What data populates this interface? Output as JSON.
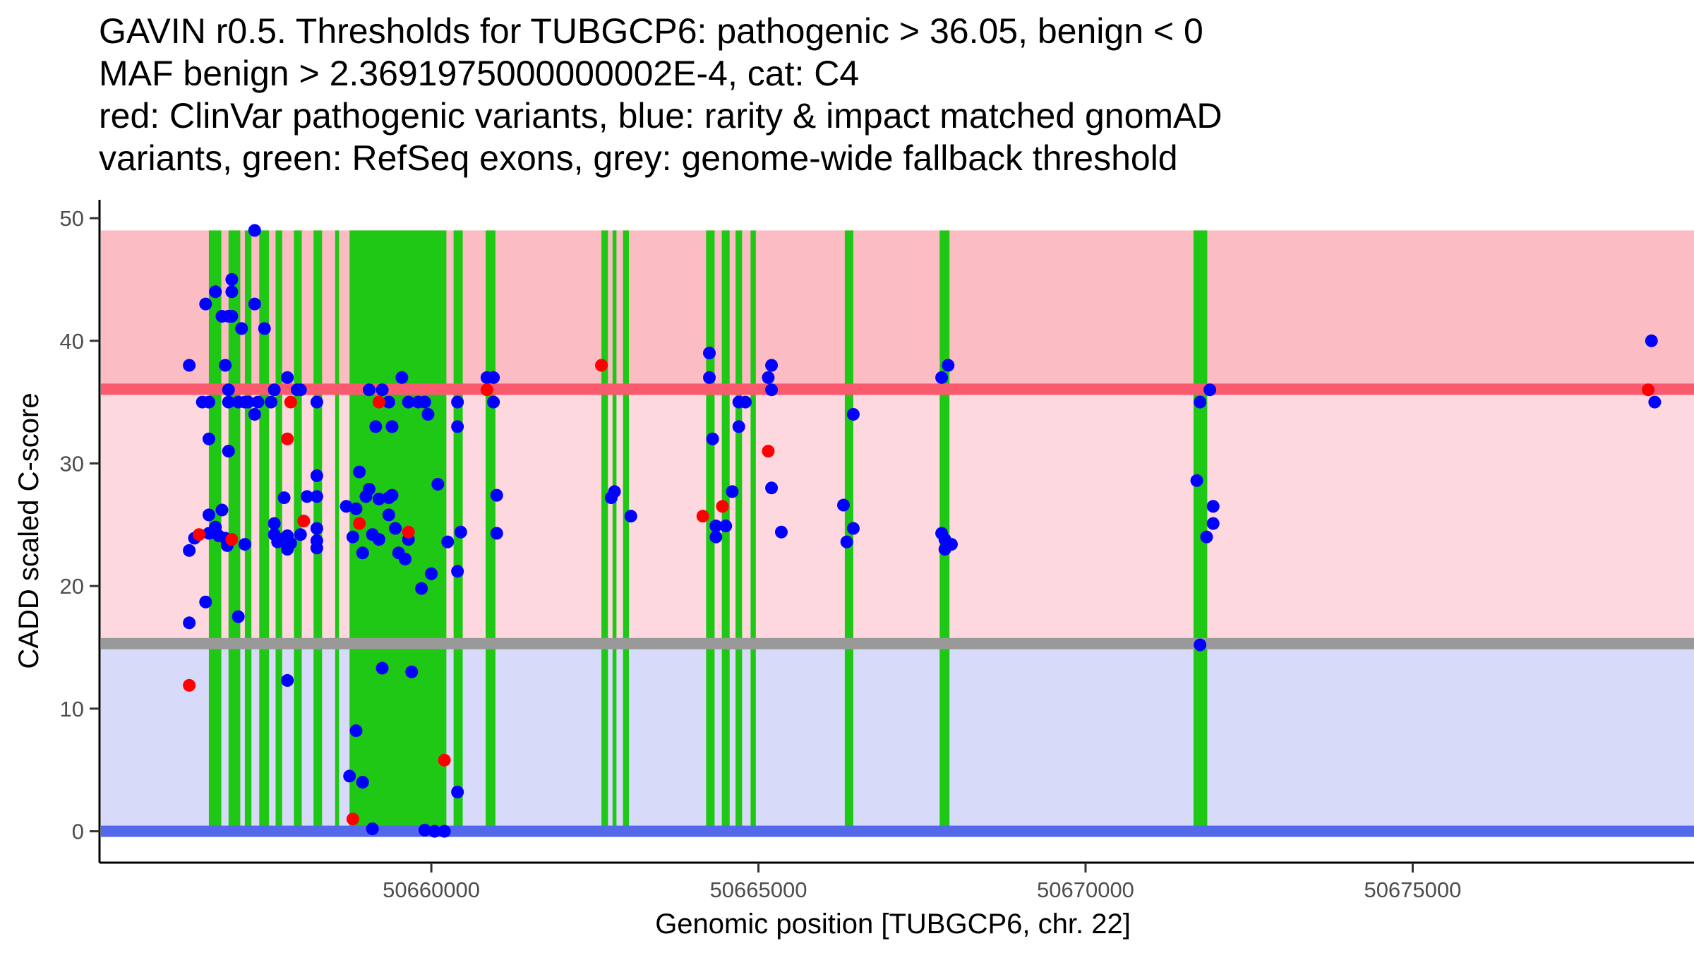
{
  "chart_data": {
    "type": "scatter",
    "title_lines": [
      "GAVIN r0.5. Thresholds for TUBGCP6: pathogenic > 36.05, benign < 0",
      "MAF benign > 2.3691975000000002E-4, cat: C4",
      "red: ClinVar pathogenic variants, blue: rarity & impact matched gnomAD",
      "variants, green: RefSeq exons, grey: genome-wide fallback threshold"
    ],
    "xlabel": "Genomic position [TUBGCP6, chr. 22]",
    "ylabel": "CADD scaled C-score",
    "xlim": [
      50654950,
      50679300
    ],
    "ylim": [
      -2.5,
      51.5
    ],
    "x_ticks": [
      50660000,
      50665000,
      50670000,
      50675000
    ],
    "x_tick_labels": [
      "50660000",
      "50665000",
      "50670000",
      "50675000"
    ],
    "y_ticks": [
      0,
      10,
      20,
      30,
      40,
      50
    ],
    "y_tick_labels": [
      "0",
      "10",
      "20",
      "30",
      "40",
      "50"
    ],
    "bands": [
      {
        "name": "pathogenic-zone",
        "from": 36.05,
        "to": 49,
        "color": "#fbbcc4"
      },
      {
        "name": "uncertain-zone",
        "from": 15.3,
        "to": 36.05,
        "color": "#fdd9df"
      },
      {
        "name": "benign-zone",
        "from": 0,
        "to": 15.3,
        "color": "#d8daf9"
      }
    ],
    "threshold_lines": [
      {
        "name": "pathogenic-threshold",
        "y": 36.05,
        "color": "#fa5a6e"
      },
      {
        "name": "fallback-threshold",
        "y": 15.3,
        "color": "#999999"
      },
      {
        "name": "benign-threshold",
        "y": 0,
        "color": "#5468ec"
      }
    ],
    "exon_color": "#1ec814",
    "exons": [
      [
        50656600,
        50656790
      ],
      [
        50656900,
        50657080
      ],
      [
        50657150,
        50657250
      ],
      [
        50657370,
        50657520
      ],
      [
        50657620,
        50657720
      ],
      [
        50657900,
        50658020
      ],
      [
        50658200,
        50658330
      ],
      [
        50658530,
        50658590
      ],
      [
        50658750,
        50660230
      ],
      [
        50660340,
        50660480
      ],
      [
        50660830,
        50660980
      ],
      [
        50662600,
        50662700
      ],
      [
        50662770,
        50662830
      ],
      [
        50662930,
        50663020
      ],
      [
        50664200,
        50664330
      ],
      [
        50664440,
        50664560
      ],
      [
        50664650,
        50664750
      ],
      [
        50664880,
        50664960
      ],
      [
        50666320,
        50666450
      ],
      [
        50667770,
        50667920
      ],
      [
        50671650,
        50671860
      ]
    ],
    "series": [
      {
        "name": "gnomAD variants",
        "color": "#0000ff",
        "points": [
          [
            50656300,
            38
          ],
          [
            50656300,
            22.9
          ],
          [
            50656300,
            17
          ],
          [
            50656380,
            23.9
          ],
          [
            50656500,
            35
          ],
          [
            50656550,
            43
          ],
          [
            50656550,
            18.7
          ],
          [
            50656600,
            35
          ],
          [
            50656600,
            32
          ],
          [
            50656600,
            25.8
          ],
          [
            50656600,
            24.3
          ],
          [
            50656700,
            44
          ],
          [
            50656700,
            24.8
          ],
          [
            50656750,
            24.1
          ],
          [
            50656800,
            26.2
          ],
          [
            50656800,
            42
          ],
          [
            50656850,
            38
          ],
          [
            50656850,
            23.9
          ],
          [
            50656880,
            23.3
          ],
          [
            50656900,
            42
          ],
          [
            50656900,
            36
          ],
          [
            50656900,
            35
          ],
          [
            50656900,
            31
          ],
          [
            50656950,
            45
          ],
          [
            50656950,
            44
          ],
          [
            50656950,
            42
          ],
          [
            50657050,
            35
          ],
          [
            50657050,
            17.5
          ],
          [
            50657100,
            41
          ],
          [
            50657150,
            35
          ],
          [
            50657150,
            23.4
          ],
          [
            50657200,
            35
          ],
          [
            50657300,
            49
          ],
          [
            50657300,
            43
          ],
          [
            50657300,
            34
          ],
          [
            50657350,
            35
          ],
          [
            50657450,
            41
          ],
          [
            50657550,
            35
          ],
          [
            50657600,
            36
          ],
          [
            50657600,
            25.1
          ],
          [
            50657600,
            24.2
          ],
          [
            50657650,
            23.6
          ],
          [
            50657700,
            23.8
          ],
          [
            50657750,
            27.2
          ],
          [
            50657800,
            37
          ],
          [
            50657800,
            12.3
          ],
          [
            50657800,
            24.1
          ],
          [
            50657800,
            23
          ],
          [
            50657850,
            23.5
          ],
          [
            50657950,
            36
          ],
          [
            50658000,
            36
          ],
          [
            50658000,
            24.2
          ],
          [
            50658100,
            27.3
          ],
          [
            50658250,
            35
          ],
          [
            50658250,
            29
          ],
          [
            50658250,
            27.3
          ],
          [
            50658250,
            24.7
          ],
          [
            50658250,
            23.7
          ],
          [
            50658250,
            23.1
          ],
          [
            50658700,
            26.5
          ],
          [
            50658750,
            4.5
          ],
          [
            50658800,
            24
          ],
          [
            50658850,
            8.2
          ],
          [
            50658850,
            26.3
          ],
          [
            50658900,
            29.3
          ],
          [
            50658950,
            4
          ],
          [
            50658950,
            22.7
          ],
          [
            50659000,
            27.3
          ],
          [
            50659050,
            36
          ],
          [
            50659050,
            27.9
          ],
          [
            50659100,
            0.2
          ],
          [
            50659100,
            24.2
          ],
          [
            50659150,
            33
          ],
          [
            50659200,
            27.1
          ],
          [
            50659200,
            23.8
          ],
          [
            50659250,
            36
          ],
          [
            50659250,
            13.3
          ],
          [
            50659350,
            35
          ],
          [
            50659350,
            27.2
          ],
          [
            50659350,
            25.8
          ],
          [
            50659400,
            33
          ],
          [
            50659400,
            27.4
          ],
          [
            50659450,
            24.7
          ],
          [
            50659500,
            22.7
          ],
          [
            50659550,
            37
          ],
          [
            50659600,
            22.2
          ],
          [
            50659650,
            35
          ],
          [
            50659650,
            23.8
          ],
          [
            50659700,
            13
          ],
          [
            50659800,
            35
          ],
          [
            50659850,
            19.8
          ],
          [
            50659900,
            35
          ],
          [
            50659900,
            0.1
          ],
          [
            50659950,
            34
          ],
          [
            50660000,
            21
          ],
          [
            50660050,
            0
          ],
          [
            50660100,
            28.3
          ],
          [
            50660200,
            0
          ],
          [
            50660250,
            23.6
          ],
          [
            50660400,
            35
          ],
          [
            50660400,
            33
          ],
          [
            50660400,
            21.2
          ],
          [
            50660400,
            3.2
          ],
          [
            50660450,
            24.4
          ],
          [
            50660850,
            37
          ],
          [
            50660950,
            37
          ],
          [
            50660950,
            35
          ],
          [
            50661000,
            27.4
          ],
          [
            50661000,
            24.3
          ],
          [
            50662750,
            27.2
          ],
          [
            50662800,
            27.7
          ],
          [
            50663050,
            25.7
          ],
          [
            50664250,
            39
          ],
          [
            50664250,
            37
          ],
          [
            50664300,
            32
          ],
          [
            50664350,
            24.9
          ],
          [
            50664350,
            24
          ],
          [
            50664500,
            24.9
          ],
          [
            50664600,
            27.7
          ],
          [
            50664700,
            35
          ],
          [
            50664700,
            33
          ],
          [
            50664800,
            35
          ],
          [
            50665150,
            37
          ],
          [
            50665200,
            38
          ],
          [
            50665200,
            36
          ],
          [
            50665200,
            28
          ],
          [
            50665350,
            24.4
          ],
          [
            50666300,
            26.6
          ],
          [
            50666350,
            23.6
          ],
          [
            50666450,
            34
          ],
          [
            50666450,
            24.7
          ],
          [
            50667800,
            37
          ],
          [
            50667800,
            24.3
          ],
          [
            50667850,
            23.8
          ],
          [
            50667850,
            23
          ],
          [
            50667900,
            38
          ],
          [
            50667950,
            23.4
          ],
          [
            50671700,
            28.6
          ],
          [
            50671750,
            35
          ],
          [
            50671750,
            15.2
          ],
          [
            50671850,
            24
          ],
          [
            50671900,
            36
          ],
          [
            50671950,
            26.5
          ],
          [
            50671950,
            25.1
          ],
          [
            50678650,
            40
          ],
          [
            50678700,
            35
          ]
        ]
      },
      {
        "name": "ClinVar pathogenic variants",
        "color": "#ff0000",
        "points": [
          [
            50656300,
            11.9
          ],
          [
            50656450,
            24.2
          ],
          [
            50656950,
            23.8
          ],
          [
            50657800,
            32
          ],
          [
            50657850,
            35
          ],
          [
            50658050,
            25.3
          ],
          [
            50658800,
            1
          ],
          [
            50658900,
            25.1
          ],
          [
            50659200,
            35
          ],
          [
            50659650,
            24.4
          ],
          [
            50660200,
            5.8
          ],
          [
            50660850,
            36
          ],
          [
            50662600,
            38
          ],
          [
            50664150,
            25.7
          ],
          [
            50664450,
            26.5
          ],
          [
            50665150,
            31
          ],
          [
            50678600,
            36
          ]
        ]
      }
    ]
  }
}
